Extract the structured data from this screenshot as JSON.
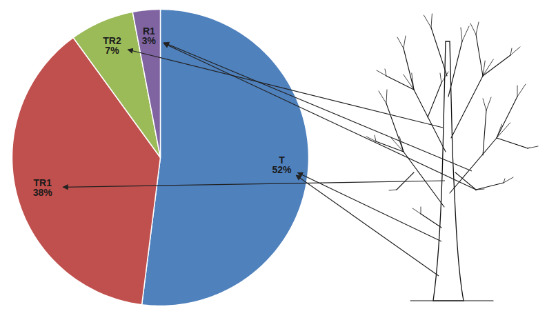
{
  "chart_data": {
    "type": "pie",
    "categories": [
      "T",
      "TR1",
      "TR2",
      "R1"
    ],
    "values": [
      52,
      38,
      7,
      3
    ],
    "value_labels": [
      "52%",
      "38%",
      "7%",
      "3%"
    ],
    "colors": [
      "#4F81BD",
      "#C0504D",
      "#9BBB59",
      "#8064A2"
    ],
    "data_labels": true
  }
}
